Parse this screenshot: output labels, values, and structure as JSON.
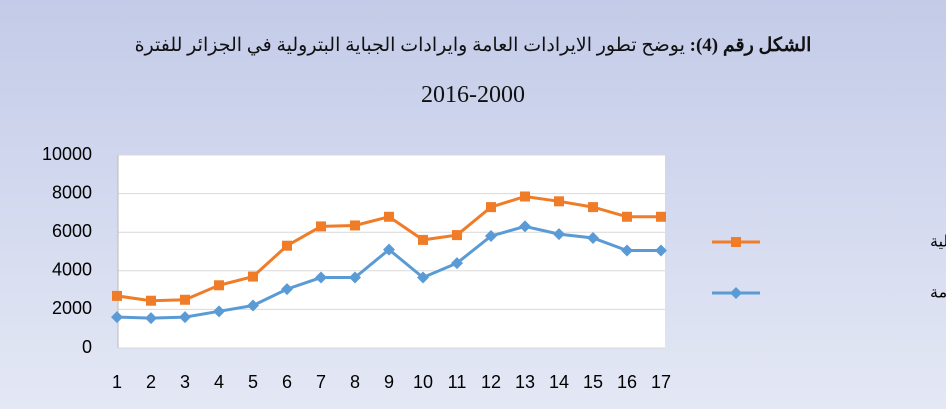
{
  "chart_data": {
    "type": "line",
    "title_label": "الشكل رقم (4):",
    "title": "يوضح تطور الايرادات العامة وايرادات الجباية البترولية في الجزائر للفترة",
    "subtitle": "2016-2000",
    "categories": [
      1,
      2,
      3,
      4,
      5,
      6,
      7,
      8,
      9,
      10,
      11,
      12,
      13,
      14,
      15,
      16,
      17
    ],
    "series": [
      {
        "name": "الايرادات البترولية",
        "color": "#f07c28",
        "marker": "square",
        "values": [
          2700,
          2450,
          2500,
          3250,
          3700,
          5300,
          6300,
          6350,
          6800,
          5600,
          5850,
          7300,
          7850,
          7600,
          7300,
          6800,
          6800
        ]
      },
      {
        "name": "الايرادات العامة",
        "color": "#5b9bd5",
        "marker": "diamond",
        "values": [
          1600,
          1550,
          1600,
          1900,
          2200,
          3050,
          3650,
          3650,
          5100,
          3650,
          4400,
          5800,
          6300,
          5900,
          5700,
          5050,
          5050
        ]
      }
    ],
    "ylim": [
      0,
      10000
    ],
    "yticks": [
      0,
      2000,
      4000,
      6000,
      8000,
      10000
    ],
    "grid": true,
    "legend": "right"
  }
}
